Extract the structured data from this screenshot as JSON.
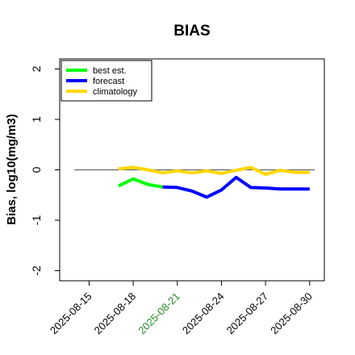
{
  "chart_data": {
    "type": "line",
    "title": "BIAS",
    "ylabel": "Bias, log10(mg/m3)",
    "xlabel": "",
    "ylim": [
      -2.2,
      2.2
    ],
    "yticks": [
      -2,
      -1,
      0,
      1,
      2
    ],
    "xlim": [
      "2025-08-13",
      "2025-08-31"
    ],
    "xticks": [
      {
        "date": "2025-08-15",
        "label": "2025-08-15",
        "color": "#000000"
      },
      {
        "date": "2025-08-18",
        "label": "2025-08-18",
        "color": "#000000"
      },
      {
        "date": "2025-08-21",
        "label": "2025-08-21",
        "color": "#228b22"
      },
      {
        "date": "2025-08-24",
        "label": "2025-08-24",
        "color": "#000000"
      },
      {
        "date": "2025-08-27",
        "label": "2025-08-27",
        "color": "#000000"
      },
      {
        "date": "2025-08-30",
        "label": "2025-08-30",
        "color": "#000000"
      }
    ],
    "zero_line": 0,
    "grid": false,
    "legend_position": "top-left",
    "series": [
      {
        "name": "best est.",
        "color": "#00ff00",
        "x": [
          "2025-08-17",
          "2025-08-18",
          "2025-08-19",
          "2025-08-20"
        ],
        "y": [
          -0.32,
          -0.18,
          -0.29,
          -0.34
        ]
      },
      {
        "name": "forecast",
        "color": "#0000ff",
        "x": [
          "2025-08-20",
          "2025-08-21",
          "2025-08-22",
          "2025-08-23",
          "2025-08-24",
          "2025-08-25",
          "2025-08-26",
          "2025-08-27",
          "2025-08-28",
          "2025-08-29",
          "2025-08-30"
        ],
        "y": [
          -0.34,
          -0.35,
          -0.42,
          -0.54,
          -0.4,
          -0.15,
          -0.35,
          -0.36,
          -0.38,
          -0.38,
          -0.38
        ]
      },
      {
        "name": "climatology",
        "color": "#ffd700",
        "x": [
          "2025-08-17",
          "2025-08-18",
          "2025-08-19",
          "2025-08-20",
          "2025-08-21",
          "2025-08-22",
          "2025-08-23",
          "2025-08-24",
          "2025-08-25",
          "2025-08-26",
          "2025-08-27",
          "2025-08-28",
          "2025-08-29",
          "2025-08-30"
        ],
        "y": [
          0.02,
          0.05,
          0.0,
          -0.06,
          -0.02,
          -0.06,
          -0.02,
          -0.07,
          -0.01,
          0.05,
          -0.09,
          -0.01,
          -0.05,
          -0.05
        ]
      }
    ]
  }
}
